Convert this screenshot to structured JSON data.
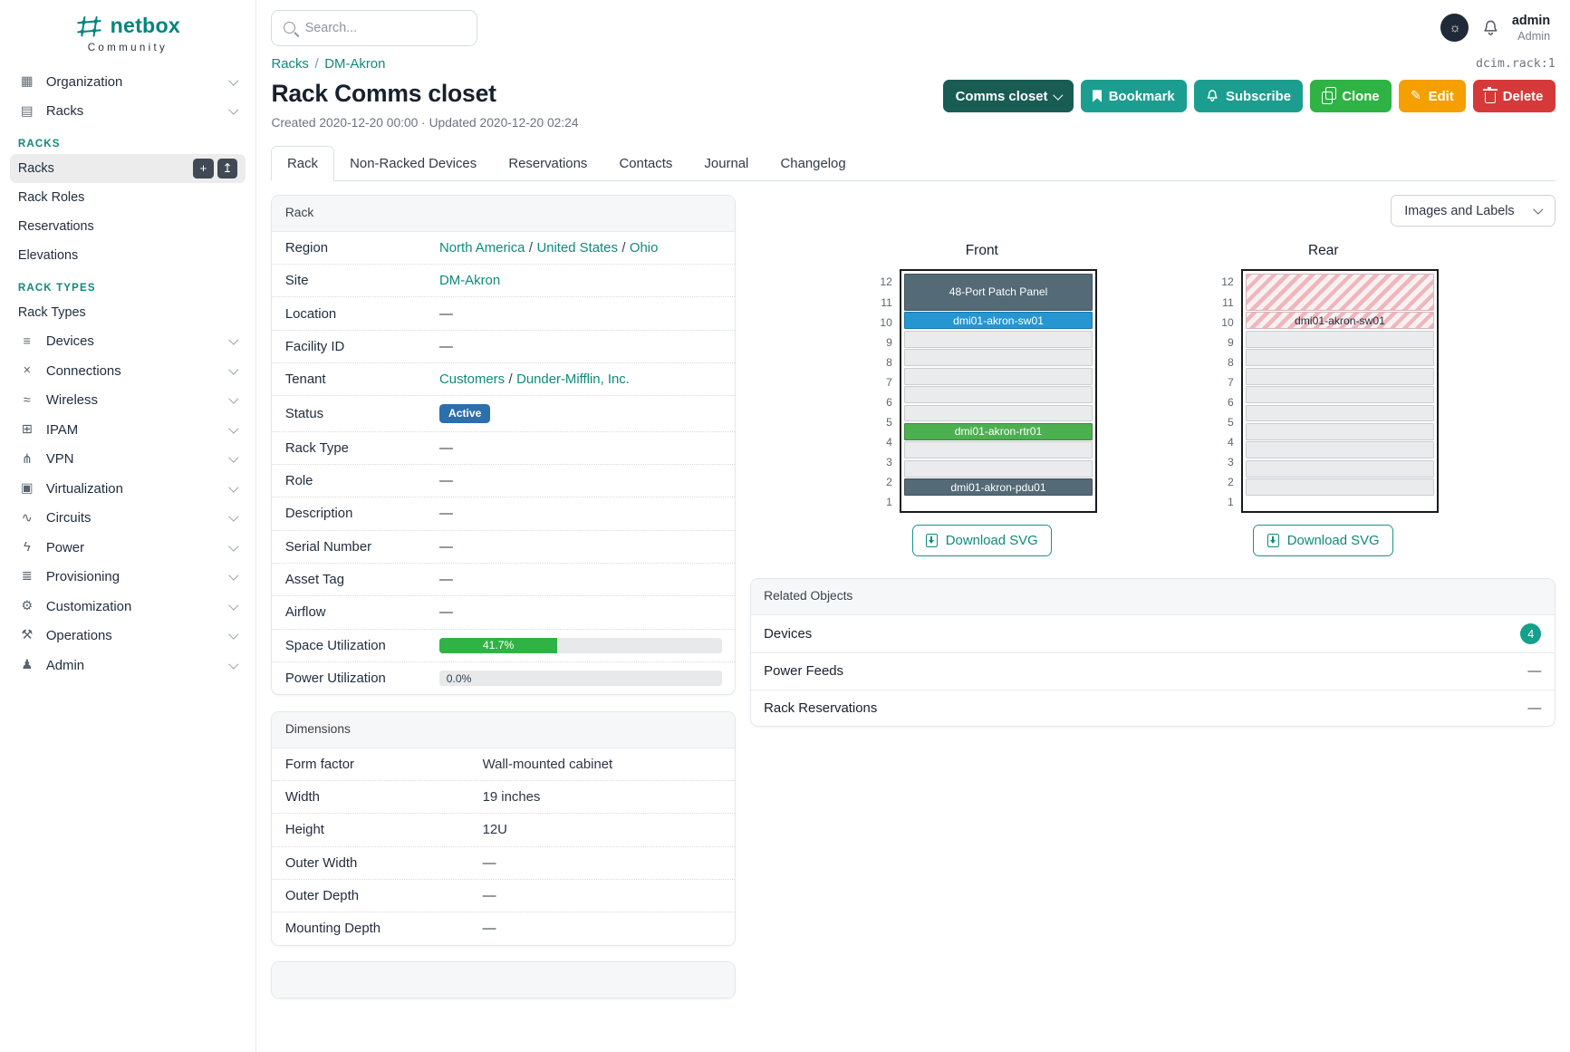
{
  "brand": {
    "name": "netbox",
    "tagline": "Community"
  },
  "topbar": {
    "search_placeholder": "Search...",
    "user_name": "admin",
    "user_role": "Admin"
  },
  "sidebar": {
    "nav": [
      {
        "type": "item",
        "label": "Organization",
        "icon": "organization-icon",
        "glyph": "▦"
      },
      {
        "type": "item",
        "label": "Racks",
        "icon": "racks-icon",
        "glyph": "▤"
      },
      {
        "type": "header",
        "label": "RACKS"
      },
      {
        "type": "sub",
        "label": "Racks",
        "active": true,
        "actions": [
          {
            "name": "add-rack-button",
            "glyph": "+"
          },
          {
            "name": "import-racks-button",
            "glyph": "↥"
          }
        ]
      },
      {
        "type": "sub",
        "label": "Rack Roles"
      },
      {
        "type": "sub",
        "label": "Reservations"
      },
      {
        "type": "sub",
        "label": "Elevations"
      },
      {
        "type": "header",
        "label": "RACK TYPES"
      },
      {
        "type": "sub",
        "label": "Rack Types"
      },
      {
        "type": "item",
        "label": "Devices",
        "icon": "devices-icon",
        "glyph": "≡"
      },
      {
        "type": "item",
        "label": "Connections",
        "icon": "connections-icon",
        "glyph": "×"
      },
      {
        "type": "item",
        "label": "Wireless",
        "icon": "wireless-icon",
        "glyph": "≈"
      },
      {
        "type": "item",
        "label": "IPAM",
        "icon": "ipam-icon",
        "glyph": "⊞"
      },
      {
        "type": "item",
        "label": "VPN",
        "icon": "vpn-icon",
        "glyph": "⋔"
      },
      {
        "type": "item",
        "label": "Virtualization",
        "icon": "virtualization-icon",
        "glyph": "▣"
      },
      {
        "type": "item",
        "label": "Circuits",
        "icon": "circuits-icon",
        "glyph": "∿"
      },
      {
        "type": "item",
        "label": "Power",
        "icon": "power-icon",
        "glyph": "ϟ"
      },
      {
        "type": "item",
        "label": "Provisioning",
        "icon": "provisioning-icon",
        "glyph": "≣"
      },
      {
        "type": "item",
        "label": "Customization",
        "icon": "customization-icon",
        "glyph": "⚙"
      },
      {
        "type": "item",
        "label": "Operations",
        "icon": "operations-icon",
        "glyph": "⚒"
      },
      {
        "type": "item",
        "label": "Admin",
        "icon": "admin-icon",
        "glyph": "♟"
      }
    ]
  },
  "breadcrumb": {
    "items": [
      "Racks",
      "DM-Akron"
    ],
    "object_id": "dcim.rack:1"
  },
  "page": {
    "title": "Rack Comms closet",
    "meta": "Created 2020-12-20 00:00 · Updated 2020-12-20 02:24"
  },
  "actions": {
    "closet_label": "Comms closet",
    "bookmark": "Bookmark",
    "subscribe": "Subscribe",
    "clone": "Clone",
    "edit": "Edit",
    "delete": "Delete"
  },
  "tabs": [
    {
      "label": "Rack",
      "active": true
    },
    {
      "label": "Non-Racked Devices"
    },
    {
      "label": "Reservations"
    },
    {
      "label": "Contacts"
    },
    {
      "label": "Journal"
    },
    {
      "label": "Changelog"
    }
  ],
  "rack_card": {
    "title": "Rack",
    "rows": [
      {
        "label": "Region",
        "type": "links",
        "parts": [
          "North America",
          "United States",
          "Ohio"
        ]
      },
      {
        "label": "Site",
        "type": "links",
        "parts": [
          "DM-Akron"
        ]
      },
      {
        "label": "Location",
        "type": "text",
        "value": "—"
      },
      {
        "label": "Facility ID",
        "type": "text",
        "value": "—"
      },
      {
        "label": "Tenant",
        "type": "links",
        "parts": [
          "Customers",
          "Dunder-Mifflin, Inc."
        ]
      },
      {
        "label": "Status",
        "type": "badge",
        "value": "Active",
        "color": "#2d6fad"
      },
      {
        "label": "Rack Type",
        "type": "text",
        "value": "—"
      },
      {
        "label": "Role",
        "type": "text",
        "value": "—"
      },
      {
        "label": "Description",
        "type": "text",
        "value": "—"
      },
      {
        "label": "Serial Number",
        "type": "text",
        "value": "—"
      },
      {
        "label": "Asset Tag",
        "type": "text",
        "value": "—"
      },
      {
        "label": "Airflow",
        "type": "text",
        "value": "—"
      },
      {
        "label": "Space Utilization",
        "type": "progress",
        "value": 41.7,
        "text": "41.7%",
        "bar": "#2fb344"
      },
      {
        "label": "Power Utilization",
        "type": "progress",
        "value": 0,
        "text": "0.0%",
        "bar": "#2fb344"
      }
    ]
  },
  "dimensions_card": {
    "title": "Dimensions",
    "rows": [
      {
        "label": "Form factor",
        "type": "text",
        "value": "Wall-mounted cabinet"
      },
      {
        "label": "Width",
        "type": "text",
        "value": "19 inches"
      },
      {
        "label": "Height",
        "type": "text",
        "value": "12U"
      },
      {
        "label": "Outer Width",
        "type": "text",
        "value": "—"
      },
      {
        "label": "Outer Depth",
        "type": "text",
        "value": "—"
      },
      {
        "label": "Mounting Depth",
        "type": "text",
        "value": "—"
      }
    ]
  },
  "elevations": {
    "toolbar_label": "Images and Labels",
    "front_title": "Front",
    "rear_title": "Rear",
    "download_label": "Download SVG",
    "unit_numbers": [
      12,
      11,
      10,
      9,
      8,
      7,
      6,
      5,
      4,
      3,
      2,
      1
    ],
    "front_blocks": [
      {
        "span": 2,
        "label": "48-Port Patch Panel",
        "bg": "#546a76",
        "fg": "#ffffff"
      },
      {
        "span": 1,
        "label": "dmi01-akron-sw01",
        "bg": "#2596d1",
        "fg": "#ffffff"
      },
      {
        "span": 1,
        "empty": true
      },
      {
        "span": 1,
        "empty": true
      },
      {
        "span": 1,
        "empty": true
      },
      {
        "span": 1,
        "empty": true
      },
      {
        "span": 1,
        "empty": true
      },
      {
        "span": 1,
        "label": "dmi01-akron-rtr01",
        "bg": "#4caf50",
        "fg": "#ffffff"
      },
      {
        "span": 1,
        "empty": true
      },
      {
        "span": 1,
        "empty": true
      },
      {
        "span": 1,
        "label": "dmi01-akron-pdu01",
        "bg": "#546a76",
        "fg": "#ffffff"
      }
    ],
    "rear_blocks": [
      {
        "span": 2,
        "striped": true,
        "label": ""
      },
      {
        "span": 1,
        "striped": true,
        "label": "dmi01-akron-sw01"
      },
      {
        "span": 1,
        "empty": true
      },
      {
        "span": 1,
        "empty": true
      },
      {
        "span": 1,
        "empty": true
      },
      {
        "span": 1,
        "empty": true
      },
      {
        "span": 1,
        "empty": true
      },
      {
        "span": 1,
        "empty": true
      },
      {
        "span": 1,
        "empty": true
      },
      {
        "span": 1,
        "empty": true
      },
      {
        "span": 1,
        "empty": true
      }
    ]
  },
  "related_card": {
    "title": "Related Objects",
    "rows": [
      {
        "label": "Devices",
        "badge": "4"
      },
      {
        "label": "Power Feeds",
        "value": "—"
      },
      {
        "label": "Rack Reservations",
        "value": "—"
      }
    ]
  },
  "colors": {
    "brand_teal": "#00857e",
    "link_teal": "#0f8a7b",
    "button_teal": "#1b9e8f",
    "clone_green": "#2fb344",
    "edit_orange": "#f59f00",
    "delete_red": "#d63939",
    "closet_dark_teal": "#185c54",
    "status_active_blue": "#2d6fad",
    "device_slate": "#546a76",
    "device_blue": "#2596d1",
    "device_green": "#4caf50",
    "related_badge_teal": "#159f8c"
  }
}
